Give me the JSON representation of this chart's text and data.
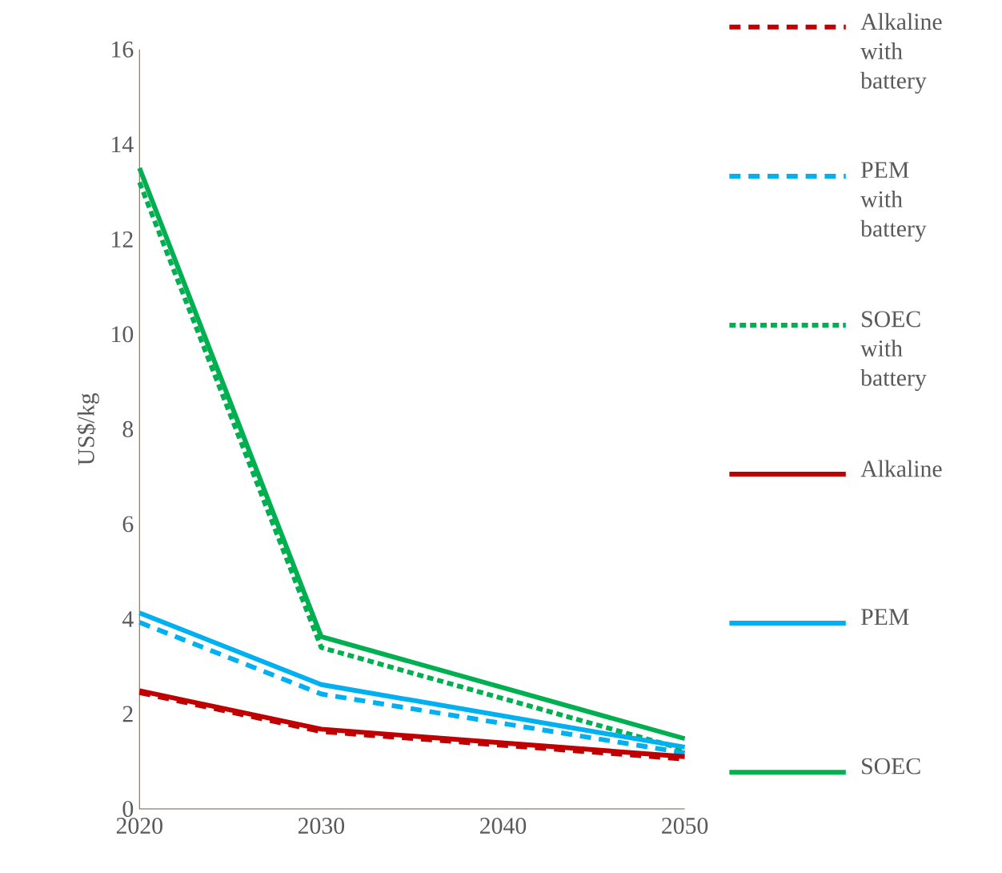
{
  "chart_data": {
    "type": "line",
    "ylabel": "US$/kg",
    "x": [
      2020,
      2030,
      2050
    ],
    "xlim": [
      2020,
      2050
    ],
    "xticks": [
      2020,
      2030,
      2040,
      2050
    ],
    "ylim": [
      0,
      16
    ],
    "yticks": [
      0,
      2,
      4,
      6,
      8,
      10,
      12,
      14,
      16
    ],
    "grid": false,
    "legend": "right",
    "line_style": "solid",
    "series": [
      {
        "name": "Alkaline with battery",
        "color": "#c00000",
        "line_style": "dashed",
        "values": [
          2.45,
          1.63,
          1.05
        ]
      },
      {
        "name": "PEM with battery",
        "color": "#00b0f0",
        "line_style": "dashed",
        "values": [
          3.93,
          2.42,
          1.18
        ]
      },
      {
        "name": "SOEC with battery",
        "color": "#00b050",
        "line_style": "dotted",
        "values": [
          13.2,
          3.4,
          1.25
        ]
      },
      {
        "name": "Alkaline",
        "color": "#c00000",
        "values": [
          2.49,
          1.68,
          1.1
        ]
      },
      {
        "name": "PEM",
        "color": "#00b0f0",
        "values": [
          4.13,
          2.62,
          1.3
        ]
      },
      {
        "name": "SOEC",
        "color": "#00b050",
        "values": [
          13.5,
          3.63,
          1.48
        ]
      }
    ]
  }
}
